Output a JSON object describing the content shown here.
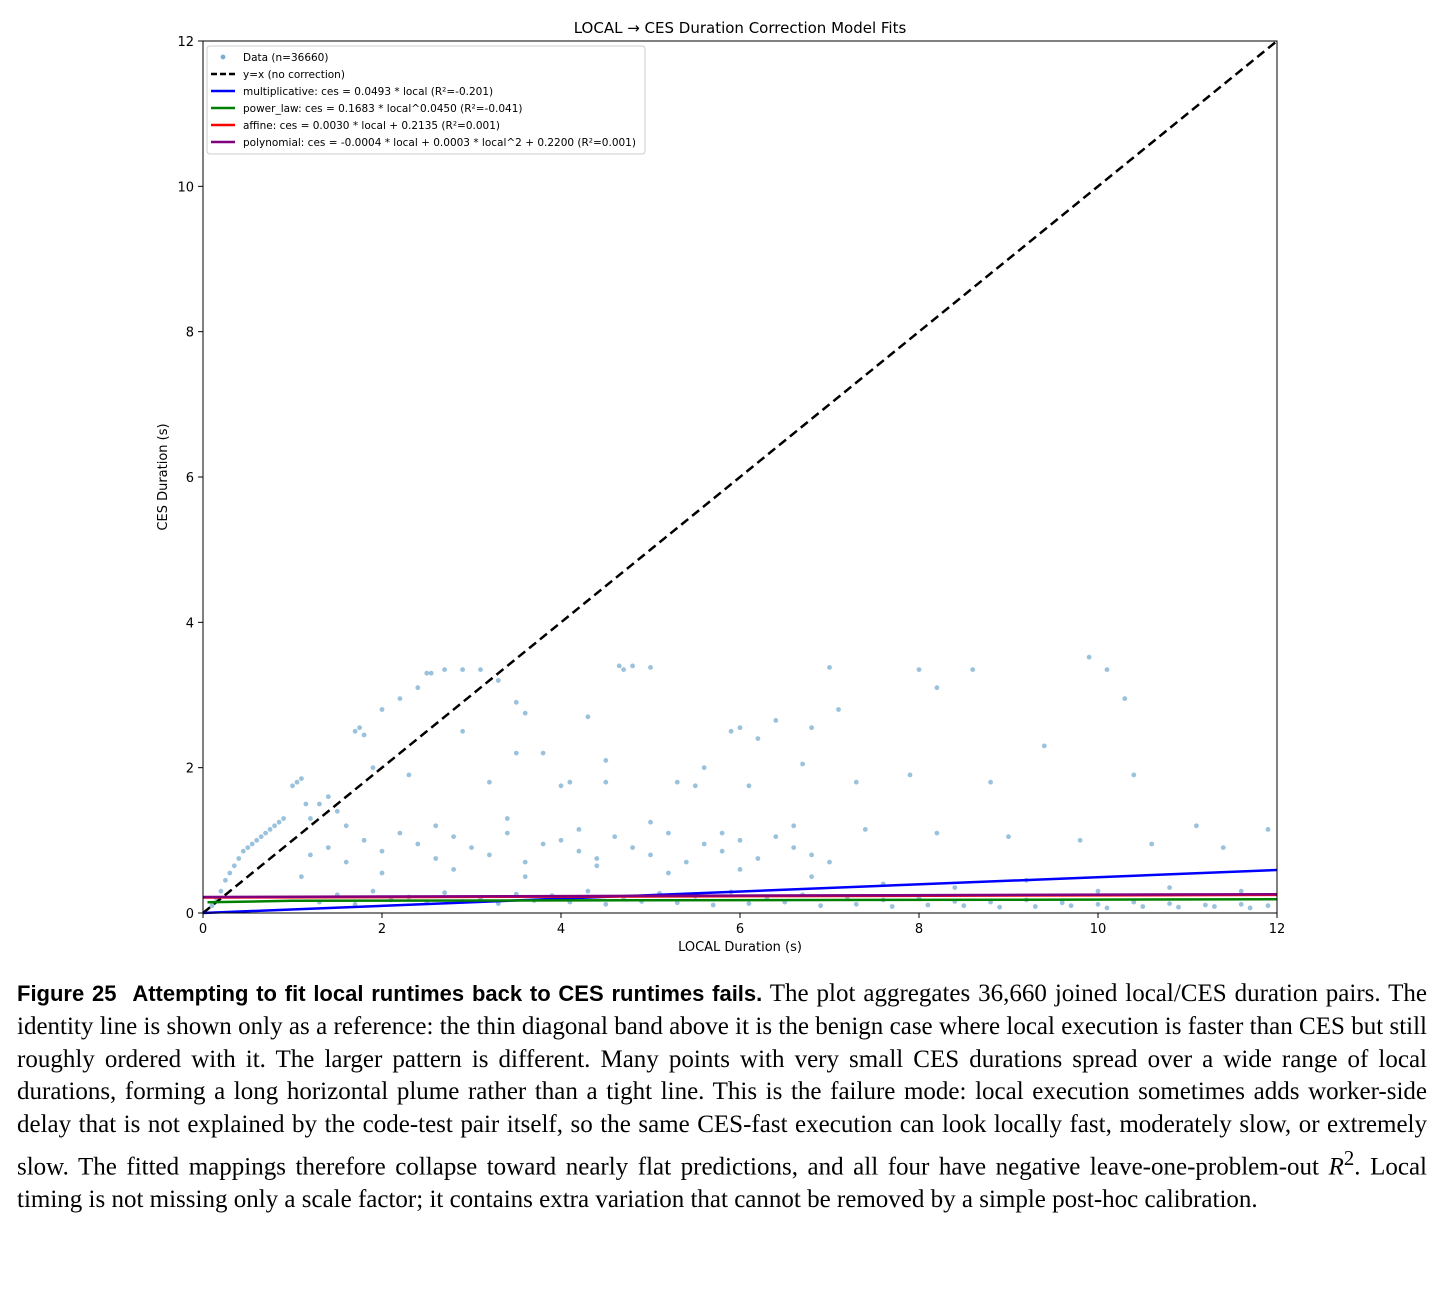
{
  "chart_data": {
    "type": "scatter",
    "title": "LOCAL → CES Duration Correction Model Fits",
    "xlabel": "LOCAL Duration (s)",
    "ylabel": "CES Duration (s)",
    "xlim": [
      0,
      12
    ],
    "ylim": [
      0,
      12
    ],
    "xticks": [
      0,
      2,
      4,
      6,
      8,
      10,
      12
    ],
    "yticks": [
      0,
      2,
      4,
      6,
      8,
      10,
      12
    ],
    "xtick_labels": [
      "0",
      "2",
      "4",
      "6",
      "8",
      "10",
      "12"
    ],
    "ytick_labels": [
      "0",
      "2",
      "4",
      "6",
      "8",
      "10",
      "12"
    ],
    "grid": false,
    "legend_position": "top-left",
    "scatter": {
      "name": "Data (n=36660)",
      "color": "#1f77b4",
      "x": [
        0.1,
        0.15,
        0.2,
        0.25,
        0.3,
        0.35,
        0.4,
        0.45,
        0.5,
        0.55,
        0.6,
        0.65,
        0.7,
        0.75,
        0.8,
        0.85,
        0.9,
        1.0,
        1.05,
        1.1,
        1.15,
        1.2,
        1.3,
        1.4,
        1.5,
        1.6,
        1.7,
        1.75,
        1.8,
        2.0,
        2.2,
        2.4,
        2.5,
        2.55,
        2.7,
        2.9,
        3.1,
        3.3,
        3.5,
        3.6,
        4.0,
        4.5,
        4.65,
        4.7,
        4.8,
        5.0,
        5.5,
        6.0,
        6.2,
        7.0,
        7.1,
        8.0,
        8.2,
        8.6,
        9.9,
        10.1,
        10.3,
        11.9,
        1.2,
        1.4,
        1.6,
        1.8,
        2.0,
        2.2,
        2.4,
        2.6,
        2.8,
        3.0,
        3.2,
        3.4,
        3.6,
        3.8,
        4.0,
        4.2,
        4.4,
        4.6,
        4.8,
        5.0,
        5.2,
        5.4,
        5.6,
        5.8,
        6.0,
        6.2,
        6.4,
        6.6,
        6.8,
        7.0,
        1.5,
        1.9,
        2.3,
        2.7,
        3.1,
        3.5,
        3.9,
        4.3,
        4.7,
        5.1,
        5.5,
        5.9,
        6.3,
        6.7,
        7.2,
        7.6,
        8.0,
        8.4,
        8.8,
        9.2,
        9.6,
        10.0,
        10.4,
        10.8,
        11.2,
        11.6,
        11.9,
        1.3,
        1.7,
        2.1,
        2.5,
        2.9,
        3.3,
        3.7,
        4.1,
        4.5,
        4.9,
        5.3,
        5.7,
        6.1,
        6.5,
        6.9,
        7.3,
        7.7,
        8.1,
        8.5,
        8.9,
        9.3,
        9.7,
        10.1,
        10.5,
        10.9,
        11.3,
        11.7,
        2.0,
        2.8,
        3.6,
        4.4,
        5.2,
        6.0,
        6.8,
        7.6,
        8.4,
        9.2,
        10.0,
        10.8,
        11.6,
        1.1,
        2.6,
        3.4,
        4.2,
        5.0,
        5.8,
        6.6,
        7.4,
        8.2,
        9.0,
        9.8,
        10.6,
        11.4,
        3.2,
        4.1,
        5.3,
        6.1,
        7.3,
        3.8,
        4.5,
        5.6,
        6.7,
        7.9,
        2.3,
        1.9,
        2.9,
        3.5,
        4.3,
        5.9,
        6.4,
        6.8,
        8.8,
        9.4,
        10.4,
        11.1
      ],
      "y": [
        0.1,
        0.2,
        0.3,
        0.45,
        0.55,
        0.65,
        0.75,
        0.85,
        0.9,
        0.95,
        1.0,
        1.05,
        1.1,
        1.15,
        1.2,
        1.25,
        1.3,
        1.75,
        1.8,
        1.85,
        1.5,
        1.3,
        1.5,
        1.6,
        1.4,
        1.2,
        2.5,
        2.55,
        2.45,
        2.8,
        2.95,
        3.1,
        3.3,
        3.3,
        3.35,
        3.35,
        3.35,
        3.2,
        2.9,
        2.75,
        1.75,
        1.8,
        3.4,
        3.35,
        3.4,
        3.38,
        1.75,
        2.55,
        2.4,
        3.38,
        2.8,
        3.35,
        3.1,
        3.35,
        3.52,
        3.35,
        2.95,
        1.15,
        0.8,
        0.9,
        0.7,
        1.0,
        0.85,
        1.1,
        0.95,
        0.75,
        1.05,
        0.9,
        0.8,
        1.1,
        0.7,
        0.95,
        1.0,
        0.85,
        0.75,
        1.05,
        0.9,
        0.8,
        1.1,
        0.7,
        0.95,
        0.85,
        1.0,
        0.75,
        1.05,
        0.9,
        0.8,
        0.7,
        0.25,
        0.3,
        0.22,
        0.28,
        0.2,
        0.26,
        0.24,
        0.3,
        0.21,
        0.27,
        0.23,
        0.29,
        0.2,
        0.25,
        0.22,
        0.18,
        0.2,
        0.16,
        0.15,
        0.18,
        0.14,
        0.12,
        0.15,
        0.13,
        0.11,
        0.12,
        0.1,
        0.15,
        0.12,
        0.18,
        0.14,
        0.16,
        0.13,
        0.17,
        0.15,
        0.12,
        0.16,
        0.14,
        0.11,
        0.13,
        0.15,
        0.1,
        0.12,
        0.09,
        0.11,
        0.1,
        0.08,
        0.09,
        0.1,
        0.07,
        0.09,
        0.08,
        0.09,
        0.07,
        0.55,
        0.6,
        0.5,
        0.65,
        0.55,
        0.6,
        0.5,
        0.4,
        0.35,
        0.45,
        0.3,
        0.35,
        0.3,
        0.5,
        1.2,
        1.3,
        1.15,
        1.25,
        1.1,
        1.2,
        1.15,
        1.1,
        1.05,
        1.0,
        0.95,
        0.9,
        1.8,
        1.8,
        1.8,
        1.75,
        1.8,
        2.2,
        2.1,
        2.0,
        2.05,
        1.9,
        1.9,
        2.0,
        2.5,
        2.2,
        2.7,
        2.5,
        2.65,
        2.55,
        1.8,
        2.3,
        1.9,
        1.2
      ]
    },
    "series": [
      {
        "name": "y=x (no correction)",
        "color": "#000000",
        "dash": true,
        "x": [
          0,
          12
        ],
        "y": [
          0,
          12
        ]
      },
      {
        "name": "multiplicative: ces = 0.0493 * local (R²=-0.201)",
        "color": "#0000ff",
        "x": [
          0,
          12
        ],
        "y": [
          0,
          0.5916
        ]
      },
      {
        "name": "power_law: ces = 0.1683 * local^0.0450 (R²=-0.041)",
        "color": "#008000",
        "x": [
          0.05,
          1,
          12
        ],
        "y": [
          0.147,
          0.1683,
          0.1885
        ]
      },
      {
        "name": "affine: ces = 0.0030 * local + 0.2135 (R²=0.001)",
        "color": "#ff0000",
        "x": [
          0,
          12
        ],
        "y": [
          0.2135,
          0.2495
        ]
      },
      {
        "name": "polynomial: ces = -0.0004 * local + 0.0003 * local^2 + 0.2200 (R²=0.001)",
        "color": "#800080",
        "x": [
          0,
          12
        ],
        "y": [
          0.22,
          0.2584
        ]
      }
    ]
  },
  "caption": {
    "figure_label": "Figure 25",
    "heading": "Attempting to fit local runtimes back to CES runtimes fails.",
    "body": "The plot aggregates 36,660 joined local/CES duration pairs. The identity line is shown only as a reference: the thin diagonal band above it is the benign case where local execution is faster than CES but still roughly ordered with it. The larger pattern is different. Many points with very small CES durations spread over a wide range of local durations, forming a long horizontal plume rather than a tight line. This is the failure mode: local execution sometimes adds worker-side delay that is not explained by the code-test pair itself, so the same CES-fast execution can look locally fast, moderately slow, or extremely slow. The fitted mappings therefore collapse toward nearly flat predictions, and all four have negative leave-one-problem-out",
    "math_symbol": "R",
    "math_superscript": "2",
    "tail": ". Local timing is not missing only a scale factor; it contains extra variation that cannot be removed by a simple post-hoc calibration."
  }
}
